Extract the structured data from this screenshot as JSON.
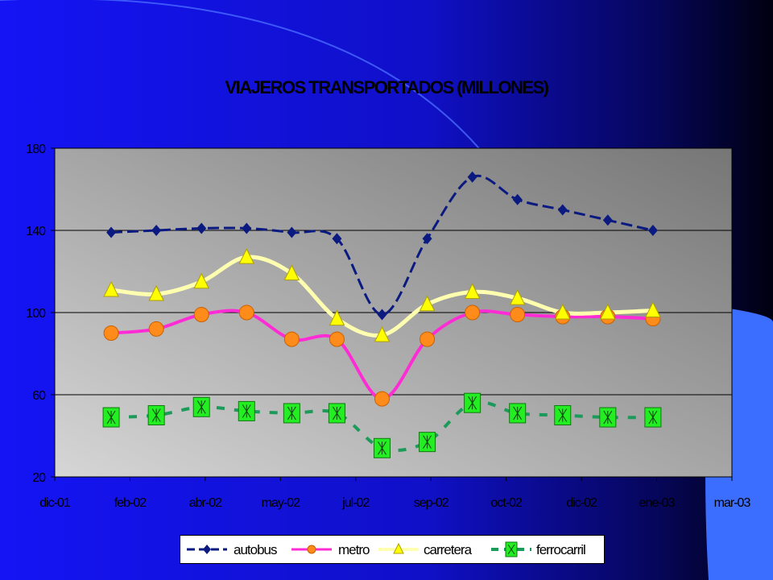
{
  "colors": {
    "background_left": "#1a1aff",
    "background_right": "#000000",
    "plot_light": "#d4d4d4",
    "plot_dark": "#7a7a7a",
    "accent_shape": "#3a6cff"
  },
  "chart_data": {
    "type": "line",
    "title": "VIAJEROS TRANSPORTADOS (MILLONES)",
    "xlabel": "",
    "ylabel": "",
    "ylim": [
      20,
      180
    ],
    "yticks": [
      20,
      60,
      100,
      140,
      180
    ],
    "grid": true,
    "legend_position": "bottom",
    "x_tick_labels": [
      "dic-01",
      "feb-02",
      "abr-02",
      "may-02",
      "jul-02",
      "sep-02",
      "oct-02",
      "dic-02",
      "ene-03",
      "mar-03"
    ],
    "x_tick_positions": [
      0,
      2,
      4,
      6,
      8,
      10,
      12,
      14,
      16,
      18
    ],
    "x_points": [
      1.5,
      2.7,
      3.9,
      5.1,
      6.3,
      7.5,
      8.7,
      9.9,
      11.1,
      12.3,
      13.5,
      14.7,
      15.9
    ],
    "series": [
      {
        "name": "autobus",
        "color": "#0a1a80",
        "marker": "diamond",
        "values": [
          139,
          140,
          141,
          141,
          139,
          136,
          99,
          136,
          166,
          155,
          150,
          145,
          140
        ]
      },
      {
        "name": "metro",
        "color": "#ff2cd6",
        "marker": "circle",
        "values": [
          90,
          92,
          99,
          100,
          87,
          87,
          58,
          87,
          100,
          99,
          98,
          98,
          97
        ]
      },
      {
        "name": "carretera",
        "color": "#ffffb0",
        "marker": "triangle",
        "values": [
          111,
          109,
          115,
          127,
          119,
          97,
          89,
          104,
          110,
          107,
          100,
          100,
          101
        ]
      },
      {
        "name": "ferrocarril",
        "color": "#1c9a5a",
        "marker": "x-square",
        "values": [
          49,
          50,
          54,
          52,
          51,
          51,
          34,
          37,
          56,
          51,
          50,
          49,
          49
        ]
      }
    ]
  }
}
